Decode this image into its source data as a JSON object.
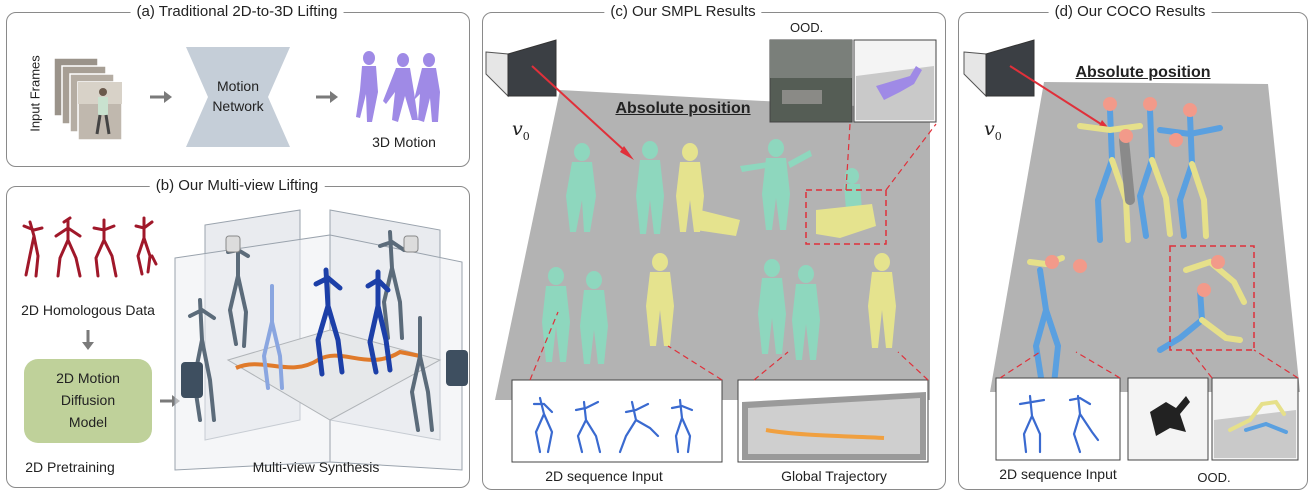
{
  "panel_a": {
    "title": "(a) Traditional 2D-to-3D Lifting",
    "input_label": "Input Frames",
    "network_label_1": "Motion",
    "network_label_2": "Network",
    "output_label": "3D Motion"
  },
  "panel_b": {
    "title": "(b) Our Multi-view Lifting",
    "data_label": "2D Homologous Data",
    "model_line1": "2D Motion",
    "model_line2": "Diffusion",
    "model_line3": "Model",
    "pretrain_label": "2D Pretraining",
    "synthesis_label": "Multi-view Synthesis"
  },
  "panel_c": {
    "title": "(c) Our SMPL Results",
    "ood_label": "OOD.",
    "camera_label": "v",
    "camera_sub": "0",
    "abs_label": "Absolute position",
    "seq_label": "2D sequence Input",
    "traj_label": "Global Trajectory"
  },
  "panel_d": {
    "title": "(d) Our COCO Results",
    "camera_label": "v",
    "camera_sub": "0",
    "abs_label": "Absolute position",
    "seq_label": "2D sequence Input",
    "ood_label": "OOD."
  },
  "colors": {
    "model_box": "#bfd19a",
    "network_box": "#c5ced8",
    "arrow_red": "#e0303a",
    "mesh_teal": "#8ed7be",
    "mesh_yellow": "#e5e38e",
    "mesh_purple": "#9f8ae6",
    "skeleton_red": "#a0182a",
    "skeleton_blue": "#1c3fa8",
    "floor_gray": "#b3b3b3"
  }
}
